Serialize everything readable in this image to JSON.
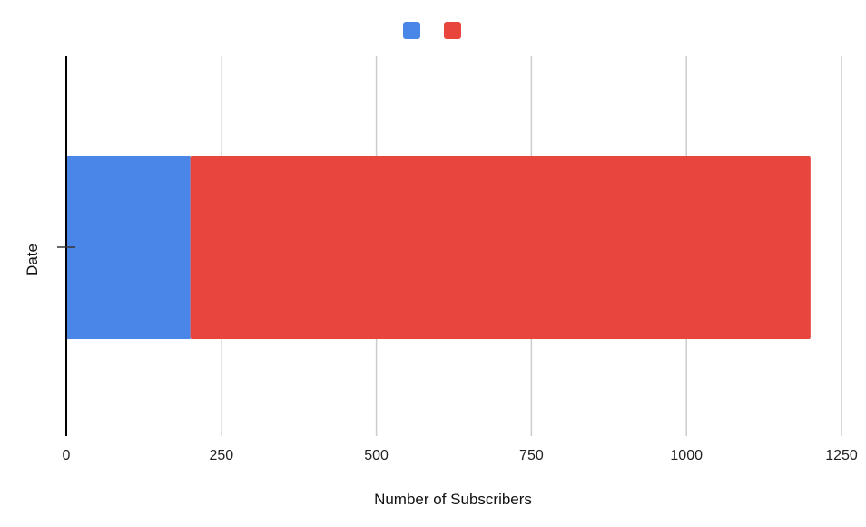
{
  "chart_data": {
    "type": "bar",
    "orientation": "horizontal",
    "stacked": true,
    "categories": [
      ""
    ],
    "series": [
      {
        "values": [
          200
        ],
        "color": "#4a86e8"
      },
      {
        "values": [
          1000
        ],
        "color": "#e8453c"
      }
    ],
    "xlabel": "Number of Subscribers",
    "ylabel": "Date",
    "xlim": [
      0,
      1250
    ],
    "xticks": [
      "0",
      "250",
      "500",
      "750",
      "1000",
      "1250"
    ],
    "grid": true,
    "legend": "top-center"
  }
}
